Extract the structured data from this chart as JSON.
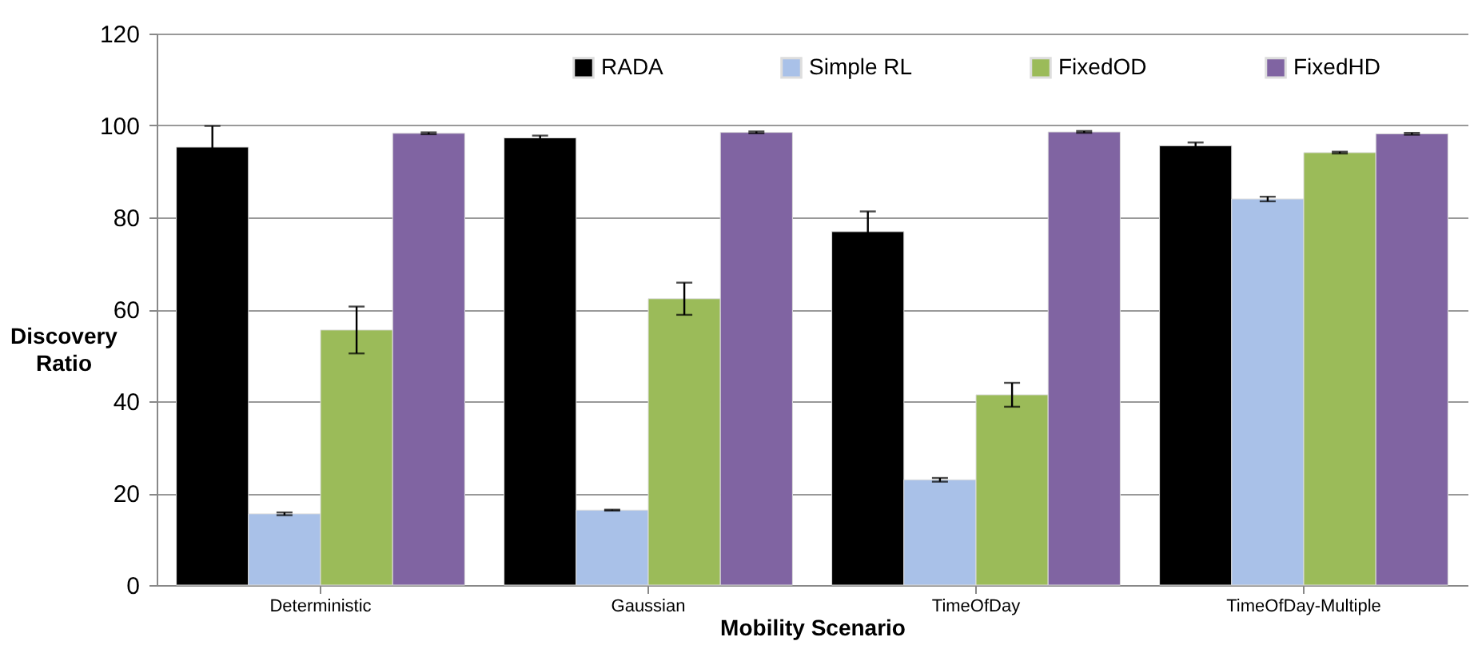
{
  "chart_data": {
    "type": "bar",
    "xlabel": "Mobility Scenario",
    "ylabel": "Discovery Ratio",
    "categories": [
      "Deterministic",
      "Gaussian",
      "TimeOfDay",
      "TimeOfDay-Multiple"
    ],
    "series": [
      {
        "name": "RADA",
        "color": "#000000",
        "values": [
          95.3,
          97.3,
          76.9,
          95.6
        ],
        "errors": [
          4.6,
          0.5,
          4.4,
          0.7
        ]
      },
      {
        "name": "Simple RL",
        "color": "#a9c1e8",
        "values": [
          15.5,
          16.3,
          22.9,
          84.0
        ],
        "errors": [
          0.3,
          0.1,
          0.4,
          0.5
        ]
      },
      {
        "name": "FixedOD",
        "color": "#9bbb59",
        "values": [
          55.5,
          62.3,
          41.4,
          94.1
        ],
        "errors": [
          5.1,
          3.5,
          2.6,
          0.2
        ]
      },
      {
        "name": "FixedHD",
        "color": "#8064a2",
        "values": [
          98.3,
          98.5,
          98.6,
          98.2
        ],
        "errors": [
          0.2,
          0.2,
          0.2,
          0.2
        ]
      }
    ],
    "ylim": [
      0,
      120
    ],
    "yticks": [
      0,
      20,
      40,
      60,
      80,
      100,
      120
    ],
    "grid": "y",
    "legend": "top"
  }
}
